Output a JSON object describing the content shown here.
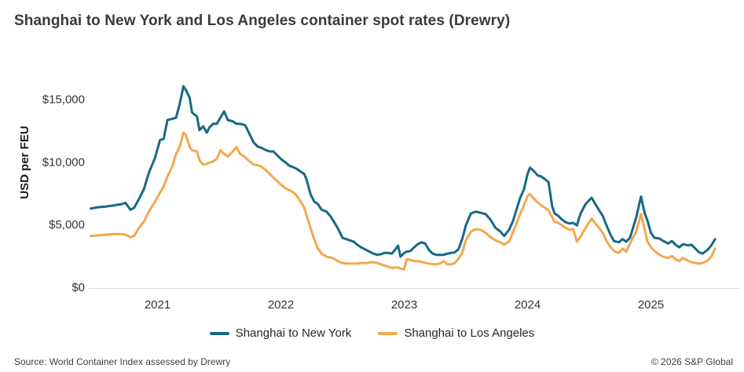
{
  "title": "Shanghai to New York and Los Angeles container spot rates (Drewry)",
  "footer": {
    "source": "Source: World Container Index assessed by Drewry",
    "copyright": "© 2026 S&P Global"
  },
  "chart_data": {
    "type": "line",
    "title": "Shanghai to New York and Los Angeles container spot rates (Drewry)",
    "xlabel": "",
    "ylabel": "USD per FEU",
    "ylim": [
      0,
      17000
    ],
    "grid": false,
    "legend_position": "bottom",
    "x_unit": "decimal_year",
    "x_tick_years": [
      2021,
      2022,
      2023,
      2024,
      2025
    ],
    "y_ticks": [
      {
        "value": 15000,
        "label": "$15,000"
      },
      {
        "value": 10000,
        "label": "$10,000"
      },
      {
        "value": 5000,
        "label": "$5,000"
      },
      {
        "value": 0,
        "label": "$0"
      }
    ],
    "series": [
      {
        "id": "shanghai-to-new-york",
        "name": "Shanghai to New York",
        "color": "#156a84"
      },
      {
        "id": "shanghai-to-los-angeles",
        "name": "Shanghai to Los Angeles",
        "color": "#f4a74e"
      }
    ],
    "points_format": [
      "decimal_year",
      "shanghai_to_new_york_usd_per_feu",
      "shanghai_to_los_angeles_usd_per_feu"
    ],
    "points": [
      [
        2020.96,
        6350,
        4150
      ],
      [
        2021.02,
        6450,
        4200
      ],
      [
        2021.08,
        6500,
        4250
      ],
      [
        2021.15,
        6600,
        4300
      ],
      [
        2021.21,
        6700,
        4300
      ],
      [
        2021.24,
        6800,
        4250
      ],
      [
        2021.28,
        6250,
        4050
      ],
      [
        2021.31,
        6400,
        4150
      ],
      [
        2021.35,
        7100,
        4800
      ],
      [
        2021.39,
        7900,
        5300
      ],
      [
        2021.43,
        9200,
        6100
      ],
      [
        2021.48,
        10400,
        6900
      ],
      [
        2021.52,
        11800,
        7600
      ],
      [
        2021.55,
        11900,
        8100
      ],
      [
        2021.58,
        13400,
        8900
      ],
      [
        2021.62,
        13500,
        9700
      ],
      [
        2021.65,
        13600,
        10700
      ],
      [
        2021.68,
        14700,
        11300
      ],
      [
        2021.71,
        16100,
        12400
      ],
      [
        2021.73,
        15800,
        12200
      ],
      [
        2021.76,
        15200,
        11300
      ],
      [
        2021.78,
        14000,
        11000
      ],
      [
        2021.82,
        13700,
        10900
      ],
      [
        2021.84,
        12600,
        10200
      ],
      [
        2021.87,
        12900,
        9850
      ],
      [
        2021.9,
        12400,
        9900
      ],
      [
        2021.92,
        12800,
        10000
      ],
      [
        2021.95,
        13100,
        10100
      ],
      [
        2021.98,
        13100,
        10300
      ],
      [
        2022.01,
        13600,
        11000
      ],
      [
        2022.04,
        14100,
        10700
      ],
      [
        2022.07,
        13400,
        10500
      ],
      [
        2022.11,
        13300,
        10900
      ],
      [
        2022.14,
        13100,
        11250
      ],
      [
        2022.17,
        13100,
        10700
      ],
      [
        2022.21,
        13000,
        10450
      ],
      [
        2022.24,
        12400,
        10150
      ],
      [
        2022.28,
        11600,
        9850
      ],
      [
        2022.31,
        11300,
        9800
      ],
      [
        2022.34,
        11200,
        9700
      ],
      [
        2022.38,
        11000,
        9400
      ],
      [
        2022.41,
        10900,
        9100
      ],
      [
        2022.44,
        10900,
        8800
      ],
      [
        2022.47,
        10600,
        8550
      ],
      [
        2022.5,
        10300,
        8250
      ],
      [
        2022.54,
        10000,
        7950
      ],
      [
        2022.57,
        9750,
        7800
      ],
      [
        2022.6,
        9650,
        7650
      ],
      [
        2022.63,
        9500,
        7350
      ],
      [
        2022.66,
        9300,
        6900
      ],
      [
        2022.69,
        9100,
        6400
      ],
      [
        2022.71,
        8600,
        5750
      ],
      [
        2022.74,
        7500,
        4800
      ],
      [
        2022.77,
        6900,
        3900
      ],
      [
        2022.8,
        6700,
        3150
      ],
      [
        2022.83,
        6250,
        2750
      ],
      [
        2022.87,
        6100,
        2500
      ],
      [
        2022.9,
        5750,
        2450
      ],
      [
        2022.93,
        5300,
        2350
      ],
      [
        2022.96,
        4800,
        2150
      ],
      [
        2023.0,
        4000,
        2000
      ],
      [
        2023.03,
        3900,
        1950
      ],
      [
        2023.06,
        3800,
        1950
      ],
      [
        2023.09,
        3700,
        1950
      ],
      [
        2023.12,
        3450,
        1950
      ],
      [
        2023.15,
        3250,
        2000
      ],
      [
        2023.19,
        3050,
        2000
      ],
      [
        2023.22,
        2900,
        2050
      ],
      [
        2023.25,
        2750,
        2050
      ],
      [
        2023.28,
        2650,
        2000
      ],
      [
        2023.31,
        2700,
        1900
      ],
      [
        2023.34,
        2800,
        1800
      ],
      [
        2023.37,
        2800,
        1700
      ],
      [
        2023.4,
        2750,
        1600
      ],
      [
        2023.43,
        3100,
        1650
      ],
      [
        2023.45,
        3380,
        1650
      ],
      [
        2023.47,
        2500,
        1550
      ],
      [
        2023.5,
        2800,
        1500
      ],
      [
        2023.52,
        2900,
        2300
      ],
      [
        2023.55,
        2950,
        2250
      ],
      [
        2023.58,
        3250,
        2150
      ],
      [
        2023.61,
        3500,
        2150
      ],
      [
        2023.64,
        3650,
        2100
      ],
      [
        2023.67,
        3550,
        2000
      ],
      [
        2023.7,
        3050,
        1950
      ],
      [
        2023.73,
        2750,
        1900
      ],
      [
        2023.76,
        2650,
        1900
      ],
      [
        2023.79,
        2650,
        1950
      ],
      [
        2023.82,
        2650,
        2150
      ],
      [
        2023.85,
        2750,
        1900
      ],
      [
        2023.88,
        2800,
        1900
      ],
      [
        2023.91,
        2850,
        2000
      ],
      [
        2023.94,
        3100,
        2350
      ],
      [
        2023.97,
        3900,
        2800
      ],
      [
        2024.0,
        5000,
        3800
      ],
      [
        2024.04,
        5950,
        4500
      ],
      [
        2024.08,
        6100,
        4700
      ],
      [
        2024.12,
        6000,
        4650
      ],
      [
        2024.16,
        5900,
        4400
      ],
      [
        2024.2,
        5450,
        4050
      ],
      [
        2024.24,
        4800,
        3800
      ],
      [
        2024.28,
        4500,
        3650
      ],
      [
        2024.31,
        4150,
        3450
      ],
      [
        2024.35,
        4650,
        3700
      ],
      [
        2024.38,
        5300,
        4400
      ],
      [
        2024.41,
        6250,
        5150
      ],
      [
        2024.44,
        7200,
        5900
      ],
      [
        2024.47,
        7850,
        6600
      ],
      [
        2024.5,
        9100,
        7350
      ],
      [
        2024.52,
        9600,
        7500
      ],
      [
        2024.55,
        9350,
        7150
      ],
      [
        2024.58,
        9000,
        6850
      ],
      [
        2024.61,
        8900,
        6600
      ],
      [
        2024.64,
        8700,
        6400
      ],
      [
        2024.67,
        8450,
        6200
      ],
      [
        2024.7,
        6500,
        5650
      ],
      [
        2024.72,
        5950,
        5300
      ],
      [
        2024.75,
        5750,
        5200
      ],
      [
        2024.78,
        5450,
        5000
      ],
      [
        2024.81,
        5250,
        4800
      ],
      [
        2024.84,
        5150,
        4650
      ],
      [
        2024.87,
        5200,
        4700
      ],
      [
        2024.9,
        5000,
        3700
      ],
      [
        2024.93,
        5950,
        4100
      ],
      [
        2024.97,
        6700,
        4800
      ],
      [
        2025.02,
        7200,
        5550
      ],
      [
        2025.05,
        6700,
        5150
      ],
      [
        2025.08,
        6200,
        4800
      ],
      [
        2025.11,
        5750,
        4400
      ],
      [
        2025.14,
        5000,
        3750
      ],
      [
        2025.17,
        4300,
        3300
      ],
      [
        2025.2,
        3750,
        2950
      ],
      [
        2025.24,
        3650,
        2800
      ],
      [
        2025.27,
        3900,
        3150
      ],
      [
        2025.3,
        3700,
        2900
      ],
      [
        2025.33,
        4000,
        3550
      ],
      [
        2025.38,
        5600,
        4500
      ],
      [
        2025.42,
        7300,
        5900
      ],
      [
        2025.45,
        5950,
        4650
      ],
      [
        2025.47,
        5450,
        3750
      ],
      [
        2025.5,
        4400,
        3250
      ],
      [
        2025.53,
        4000,
        2950
      ],
      [
        2025.57,
        3950,
        2650
      ],
      [
        2025.6,
        3750,
        2500
      ],
      [
        2025.64,
        3550,
        2400
      ],
      [
        2025.67,
        3750,
        2550
      ],
      [
        2025.7,
        3450,
        2300
      ],
      [
        2025.73,
        3250,
        2150
      ],
      [
        2025.76,
        3500,
        2400
      ],
      [
        2025.8,
        3400,
        2200
      ],
      [
        2025.83,
        3450,
        2050
      ],
      [
        2025.86,
        3150,
        2000
      ],
      [
        2025.89,
        2850,
        1950
      ],
      [
        2025.92,
        2750,
        2000
      ],
      [
        2025.96,
        3050,
        2200
      ],
      [
        2025.99,
        3400,
        2500
      ],
      [
        2026.02,
        3900,
        3150
      ]
    ]
  }
}
